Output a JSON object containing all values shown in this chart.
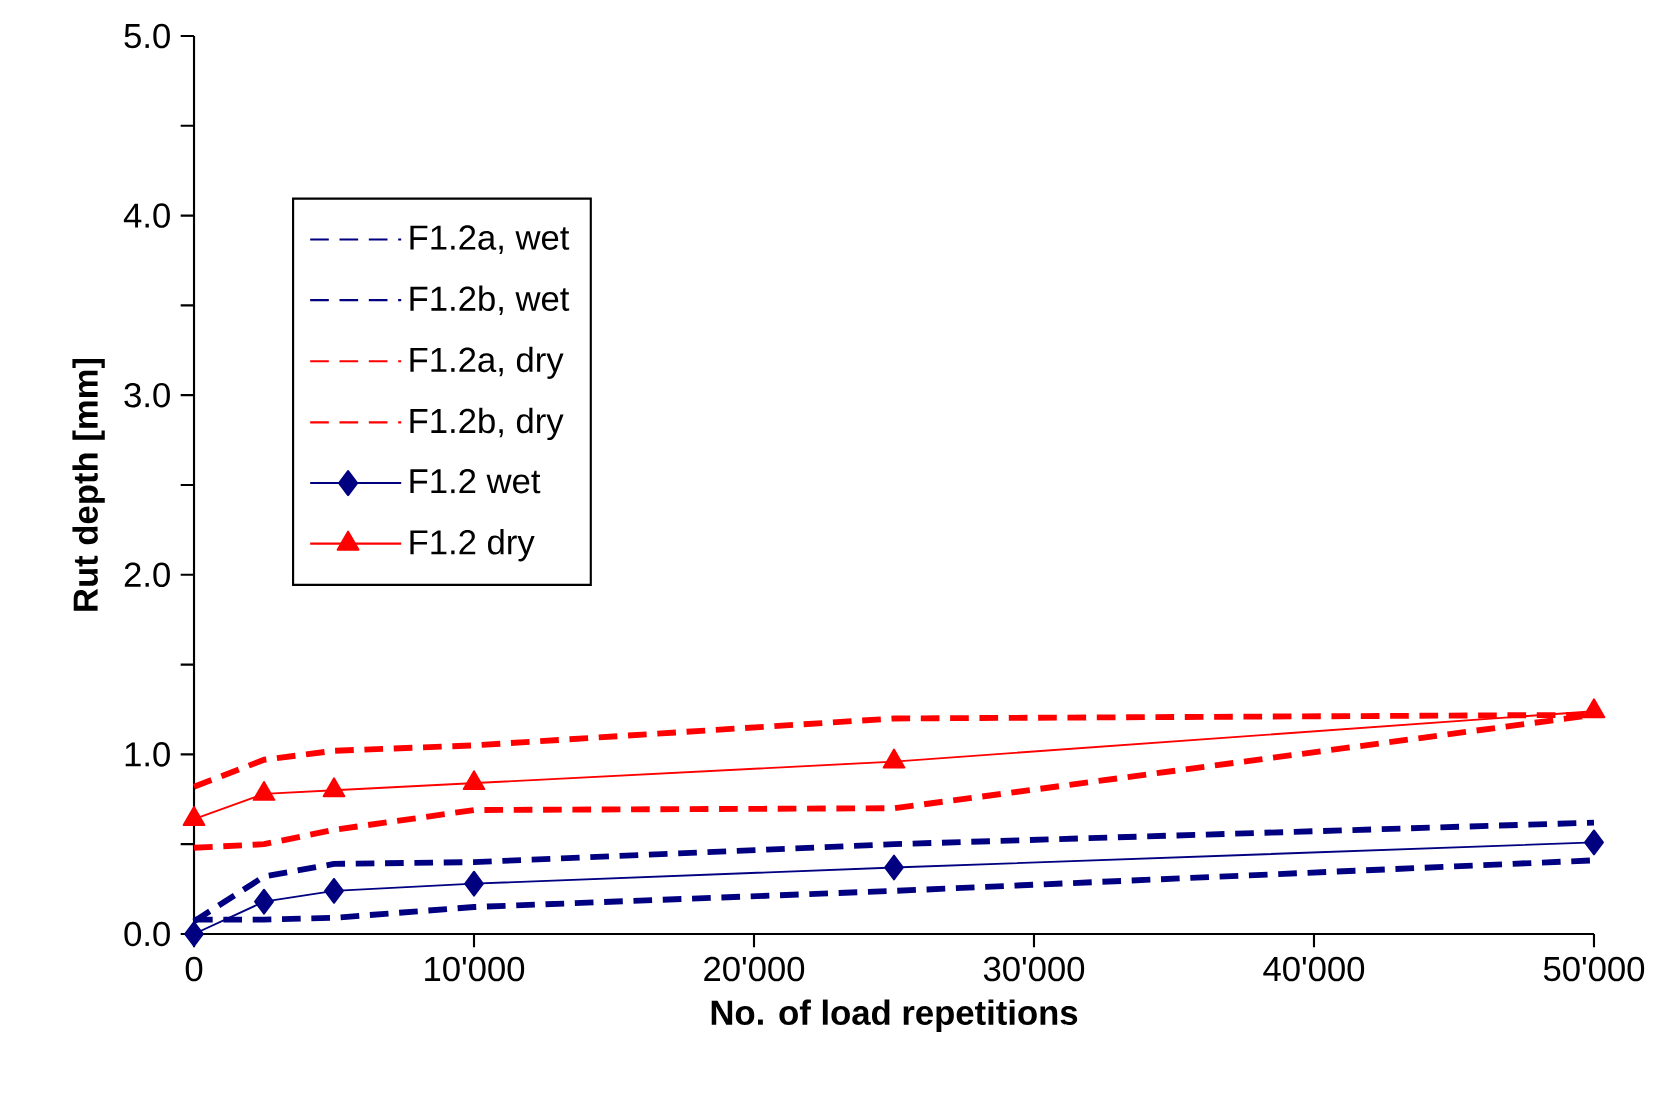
{
  "chart_data": {
    "type": "line",
    "xlabel": "No. of load repetitions",
    "ylabel": "Rut depth [mm]",
    "x": [
      0,
      2500,
      5000,
      10000,
      25000,
      50000
    ],
    "xlim": [
      0,
      50000
    ],
    "ylim": [
      0,
      5
    ],
    "xticks": [
      {
        "value": 0,
        "label": "0"
      },
      {
        "value": 10000,
        "label": "10'000"
      },
      {
        "value": 20000,
        "label": "20'000"
      },
      {
        "value": 30000,
        "label": "30'000"
      },
      {
        "value": 40000,
        "label": "40'000"
      },
      {
        "value": 50000,
        "label": "50'000"
      }
    ],
    "yticks": [
      {
        "value": 0,
        "label": "0.0"
      },
      {
        "value": 0.5,
        "label": null
      },
      {
        "value": 1,
        "label": "1.0"
      },
      {
        "value": 1.5,
        "label": null
      },
      {
        "value": 2,
        "label": "2.0"
      },
      {
        "value": 2.5,
        "label": null
      },
      {
        "value": 3,
        "label": "3.0"
      },
      {
        "value": 3.5,
        "label": null
      },
      {
        "value": 4,
        "label": "4.0"
      },
      {
        "value": 4.5,
        "label": null
      },
      {
        "value": 5,
        "label": "5.0"
      }
    ],
    "legend": "top left",
    "grid": false,
    "series": [
      {
        "name": "F1.2a, wet",
        "color": "#000080",
        "line_style": "dashed",
        "marker": "none",
        "values": [
          0.07,
          0.32,
          0.39,
          0.4,
          0.5,
          0.62
        ]
      },
      {
        "name": "F1.2b, wet",
        "color": "#000080",
        "line_style": "dashed",
        "marker": "none",
        "values": [
          0.08,
          0.08,
          0.09,
          0.15,
          0.24,
          0.41
        ]
      },
      {
        "name": "F1.2a, dry",
        "color": "#ff0000",
        "line_style": "dashed",
        "marker": "none",
        "values": [
          0.82,
          0.97,
          1.02,
          1.05,
          1.2,
          1.22
        ]
      },
      {
        "name": "F1.2b, dry",
        "color": "#ff0000",
        "line_style": "dashed",
        "marker": "none",
        "values": [
          0.48,
          0.5,
          0.58,
          0.69,
          0.7,
          1.22
        ]
      },
      {
        "name": "F1.2 wet",
        "color": "#000080",
        "line_style": "solid",
        "marker": "diamond",
        "values": [
          0.0,
          0.18,
          0.24,
          0.28,
          0.37,
          0.51
        ]
      },
      {
        "name": "F1.2 dry",
        "color": "#ff0000",
        "line_style": "solid",
        "marker": "triangle",
        "values": [
          0.64,
          0.78,
          0.8,
          0.84,
          0.96,
          1.24
        ]
      }
    ]
  }
}
